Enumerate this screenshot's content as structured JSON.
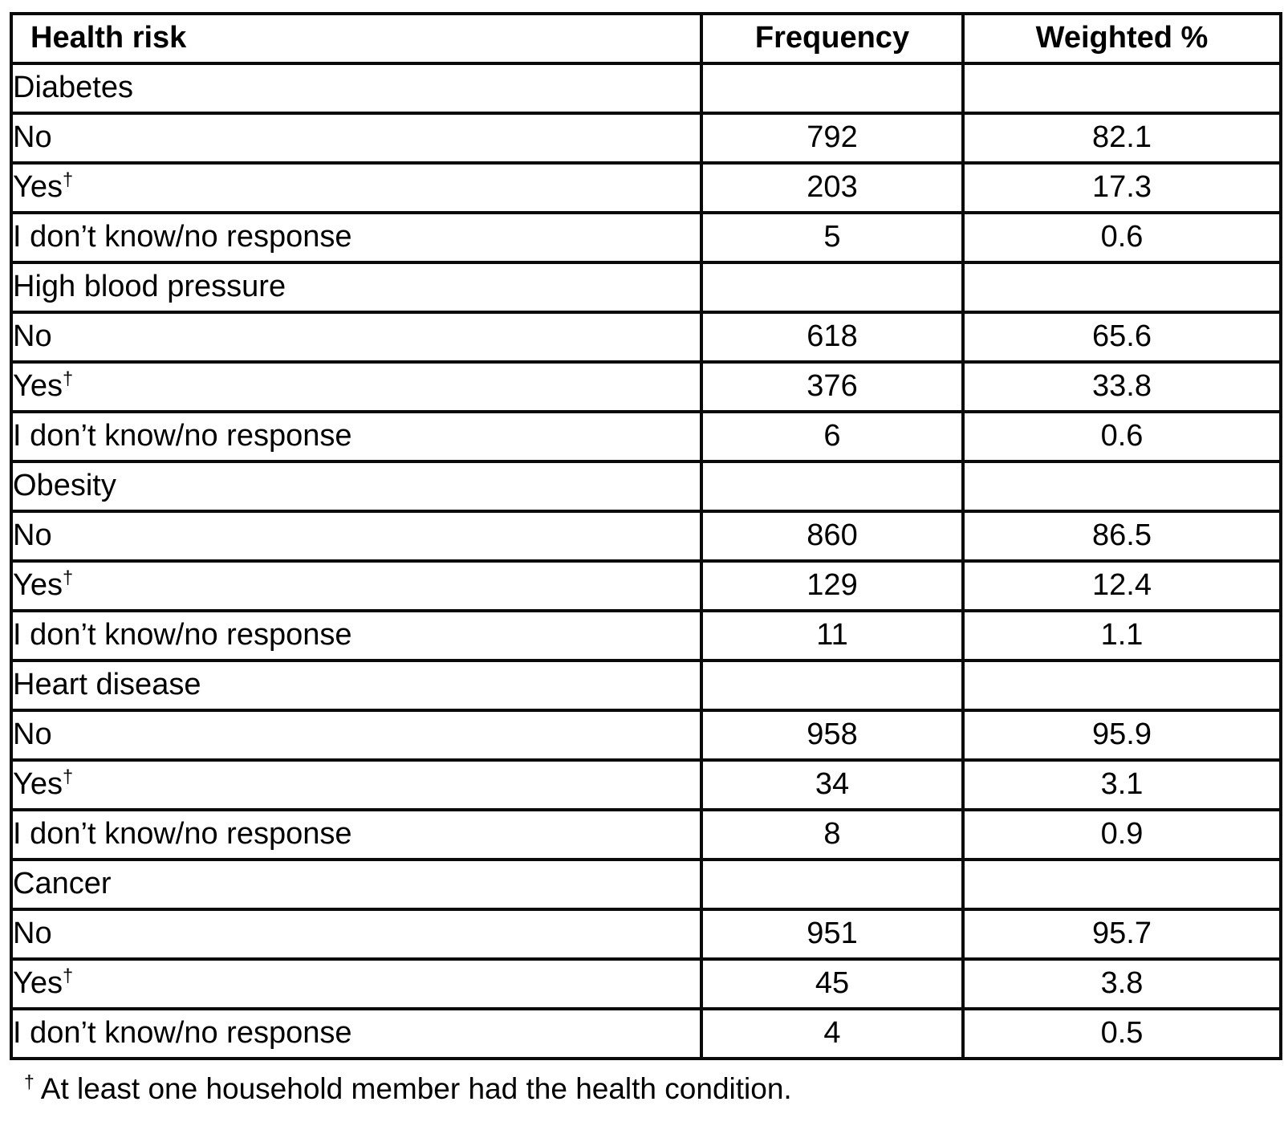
{
  "header": {
    "col1": "Health risk",
    "col2": "Frequency",
    "col3": "Weighted %"
  },
  "sections": [
    {
      "label": "Diabetes",
      "rows": [
        {
          "label": "No",
          "sup": "",
          "frequency": "792",
          "weighted_pct": "82.1"
        },
        {
          "label": "Yes",
          "sup": "†",
          "frequency": "203",
          "weighted_pct": "17.3"
        },
        {
          "label": "I don’t know/no response",
          "sup": "",
          "frequency": "5",
          "weighted_pct": "0.6"
        }
      ]
    },
    {
      "label": "High blood pressure",
      "rows": [
        {
          "label": "No",
          "sup": "",
          "frequency": "618",
          "weighted_pct": "65.6"
        },
        {
          "label": "Yes",
          "sup": "†",
          "frequency": "376",
          "weighted_pct": "33.8"
        },
        {
          "label": "I don’t know/no response",
          "sup": "",
          "frequency": "6",
          "weighted_pct": "0.6"
        }
      ]
    },
    {
      "label": "Obesity",
      "rows": [
        {
          "label": "No",
          "sup": "",
          "frequency": "860",
          "weighted_pct": "86.5"
        },
        {
          "label": "Yes",
          "sup": "†",
          "frequency": "129",
          "weighted_pct": "12.4"
        },
        {
          "label": "I don’t know/no response",
          "sup": "",
          "frequency": "11",
          "weighted_pct": "1.1"
        }
      ]
    },
    {
      "label": "Heart disease",
      "rows": [
        {
          "label": "No",
          "sup": "",
          "frequency": "958",
          "weighted_pct": "95.9"
        },
        {
          "label": "Yes",
          "sup": "†",
          "frequency": "34",
          "weighted_pct": "3.1"
        },
        {
          "label": "I don’t know/no response",
          "sup": "",
          "frequency": "8",
          "weighted_pct": "0.9"
        }
      ]
    },
    {
      "label": "Cancer",
      "rows": [
        {
          "label": "No",
          "sup": "",
          "frequency": "951",
          "weighted_pct": "95.7"
        },
        {
          "label": "Yes",
          "sup": "†",
          "frequency": "45",
          "weighted_pct": "3.8"
        },
        {
          "label": "I don’t know/no response",
          "sup": "",
          "frequency": "4",
          "weighted_pct": "0.5"
        }
      ]
    }
  ],
  "footnote": {
    "marker": "†",
    "text": "At least one household member had the health condition."
  }
}
